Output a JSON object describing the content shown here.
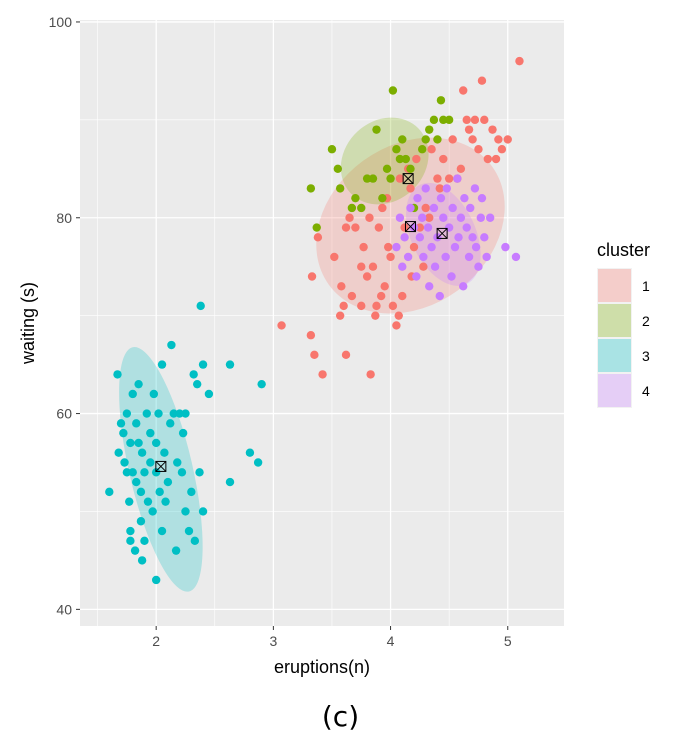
{
  "caption": "(c)",
  "chart_data": {
    "type": "scatter",
    "xlabel": "eruptions(n)",
    "ylabel": "waiting (s)",
    "xlim": [
      1.35,
      5.48
    ],
    "ylim": [
      38.3,
      100.2
    ],
    "x_ticks": [
      2,
      3,
      4,
      5
    ],
    "y_ticks": [
      40,
      60,
      80,
      100
    ],
    "grid": true,
    "background": "#ebebeb",
    "legend": {
      "title": "cluster",
      "position": "right",
      "entries": [
        "1",
        "2",
        "3",
        "4"
      ]
    },
    "series": [
      {
        "name": "1",
        "color": "#F8766D",
        "ellipse": {
          "cx": 4.17,
          "cy": 79.2,
          "rx_axis": 1.72,
          "ry_axis": 8.2,
          "angle_deg": -36,
          "fill_opacity": 0.25
        },
        "centroid": {
          "x": 4.17,
          "y": 79.1
        },
        "points": [
          [
            3.07,
            69
          ],
          [
            3.32,
            68
          ],
          [
            3.33,
            74
          ],
          [
            3.35,
            66
          ],
          [
            3.38,
            78
          ],
          [
            3.42,
            64
          ],
          [
            3.52,
            76
          ],
          [
            3.57,
            70
          ],
          [
            3.58,
            73
          ],
          [
            3.6,
            71
          ],
          [
            3.62,
            79
          ],
          [
            3.62,
            66
          ],
          [
            3.65,
            80
          ],
          [
            3.67,
            72
          ],
          [
            3.7,
            79
          ],
          [
            3.75,
            75
          ],
          [
            3.75,
            71
          ],
          [
            3.77,
            77
          ],
          [
            3.8,
            74
          ],
          [
            3.82,
            80
          ],
          [
            3.83,
            64
          ],
          [
            3.85,
            75
          ],
          [
            3.87,
            70
          ],
          [
            3.88,
            71
          ],
          [
            3.9,
            79
          ],
          [
            3.92,
            72
          ],
          [
            3.93,
            81
          ],
          [
            3.95,
            73
          ],
          [
            3.97,
            82
          ],
          [
            3.98,
            77
          ],
          [
            4.0,
            76
          ],
          [
            4.02,
            71
          ],
          [
            4.05,
            69
          ],
          [
            4.07,
            70
          ],
          [
            4.08,
            84
          ],
          [
            4.1,
            72
          ],
          [
            4.12,
            79
          ],
          [
            4.15,
            85
          ],
          [
            4.17,
            83
          ],
          [
            4.18,
            74
          ],
          [
            4.2,
            77
          ],
          [
            4.22,
            86
          ],
          [
            4.25,
            79
          ],
          [
            4.28,
            75
          ],
          [
            4.3,
            81
          ],
          [
            4.33,
            80
          ],
          [
            4.35,
            87
          ],
          [
            4.4,
            84
          ],
          [
            4.42,
            83
          ],
          [
            4.45,
            86
          ],
          [
            4.5,
            84
          ],
          [
            4.53,
            88
          ],
          [
            4.57,
            84
          ],
          [
            4.6,
            85
          ],
          [
            4.62,
            93
          ],
          [
            4.65,
            90
          ],
          [
            4.67,
            89
          ],
          [
            4.7,
            88
          ],
          [
            4.72,
            90
          ],
          [
            4.75,
            87
          ],
          [
            4.78,
            94
          ],
          [
            4.8,
            90
          ],
          [
            4.83,
            86
          ],
          [
            4.87,
            89
          ],
          [
            4.9,
            86
          ],
          [
            4.92,
            88
          ],
          [
            4.95,
            87
          ],
          [
            5.0,
            88
          ],
          [
            5.1,
            96
          ]
        ]
      },
      {
        "name": "2",
        "color": "#7CAE00",
        "ellipse": {
          "cx": 3.95,
          "cy": 85.8,
          "rx_axis": 0.8,
          "ry_axis": 4.1,
          "angle_deg": -43,
          "fill_opacity": 0.25
        },
        "centroid": {
          "x": 4.15,
          "y": 84.0
        },
        "points": [
          [
            3.32,
            83
          ],
          [
            3.37,
            79
          ],
          [
            3.5,
            87
          ],
          [
            3.55,
            85
          ],
          [
            3.57,
            83
          ],
          [
            3.67,
            81
          ],
          [
            3.7,
            82
          ],
          [
            3.75,
            81
          ],
          [
            3.8,
            84
          ],
          [
            3.85,
            84
          ],
          [
            3.88,
            89
          ],
          [
            3.93,
            82
          ],
          [
            3.97,
            85
          ],
          [
            4.0,
            84
          ],
          [
            4.02,
            93
          ],
          [
            4.05,
            87
          ],
          [
            4.08,
            86
          ],
          [
            4.1,
            88
          ],
          [
            4.13,
            86
          ],
          [
            4.17,
            85
          ],
          [
            4.2,
            81
          ],
          [
            4.27,
            87
          ],
          [
            4.3,
            88
          ],
          [
            4.33,
            89
          ],
          [
            4.37,
            90
          ],
          [
            4.4,
            88
          ],
          [
            4.43,
            92
          ],
          [
            4.45,
            90
          ],
          [
            4.5,
            90
          ]
        ]
      },
      {
        "name": "3",
        "color": "#00BFC4",
        "ellipse": {
          "cx": 2.04,
          "cy": 54.3,
          "rx_axis": 0.54,
          "ry_axis": 12.8,
          "angle_deg": -13,
          "fill_opacity": 0.25
        },
        "centroid": {
          "x": 2.04,
          "y": 54.6
        },
        "points": [
          [
            1.6,
            52
          ],
          [
            1.67,
            64
          ],
          [
            1.68,
            56
          ],
          [
            1.7,
            59
          ],
          [
            1.72,
            58
          ],
          [
            1.73,
            55
          ],
          [
            1.75,
            54
          ],
          [
            1.75,
            60
          ],
          [
            1.77,
            51
          ],
          [
            1.78,
            57
          ],
          [
            1.78,
            48
          ],
          [
            1.78,
            47
          ],
          [
            1.8,
            54
          ],
          [
            1.8,
            62
          ],
          [
            1.82,
            46
          ],
          [
            1.83,
            59
          ],
          [
            1.83,
            53
          ],
          [
            1.85,
            63
          ],
          [
            1.85,
            57
          ],
          [
            1.87,
            49
          ],
          [
            1.87,
            52
          ],
          [
            1.88,
            56
          ],
          [
            1.88,
            45
          ],
          [
            1.9,
            54
          ],
          [
            1.9,
            47
          ],
          [
            1.92,
            60
          ],
          [
            1.93,
            51
          ],
          [
            1.95,
            55
          ],
          [
            1.95,
            58
          ],
          [
            1.97,
            50
          ],
          [
            1.98,
            62
          ],
          [
            2.0,
            43
          ],
          [
            2.0,
            54
          ],
          [
            2.0,
            57
          ],
          [
            2.02,
            60
          ],
          [
            2.03,
            52
          ],
          [
            2.05,
            48
          ],
          [
            2.05,
            65
          ],
          [
            2.07,
            56
          ],
          [
            2.08,
            51
          ],
          [
            2.1,
            53
          ],
          [
            2.12,
            59
          ],
          [
            2.13,
            67
          ],
          [
            2.15,
            60
          ],
          [
            2.17,
            46
          ],
          [
            2.18,
            55
          ],
          [
            2.2,
            60
          ],
          [
            2.22,
            54
          ],
          [
            2.23,
            58
          ],
          [
            2.25,
            60
          ],
          [
            2.25,
            50
          ],
          [
            2.28,
            48
          ],
          [
            2.3,
            52
          ],
          [
            2.32,
            64
          ],
          [
            2.33,
            47
          ],
          [
            2.35,
            63
          ],
          [
            2.37,
            54
          ],
          [
            2.38,
            71
          ],
          [
            2.4,
            50
          ],
          [
            2.4,
            65
          ],
          [
            2.45,
            62
          ],
          [
            2.63,
            53
          ],
          [
            2.63,
            65
          ],
          [
            2.8,
            56
          ],
          [
            2.87,
            55
          ],
          [
            2.9,
            63
          ]
        ]
      },
      {
        "name": "4",
        "color": "#C77CFF",
        "ellipse": {
          "cx": 4.45,
          "cy": 78.3,
          "rx_axis": 0.55,
          "ry_axis": 5.6,
          "angle_deg": -25,
          "fill_opacity": 0.25
        },
        "centroid": {
          "x": 4.44,
          "y": 78.4
        },
        "points": [
          [
            4.05,
            77
          ],
          [
            4.08,
            80
          ],
          [
            4.1,
            75
          ],
          [
            4.12,
            78
          ],
          [
            4.15,
            76
          ],
          [
            4.17,
            81
          ],
          [
            4.2,
            79
          ],
          [
            4.22,
            74
          ],
          [
            4.23,
            82
          ],
          [
            4.25,
            78
          ],
          [
            4.27,
            80
          ],
          [
            4.28,
            76
          ],
          [
            4.3,
            83
          ],
          [
            4.32,
            79
          ],
          [
            4.33,
            73
          ],
          [
            4.35,
            77
          ],
          [
            4.37,
            81
          ],
          [
            4.38,
            75
          ],
          [
            4.4,
            78
          ],
          [
            4.42,
            72
          ],
          [
            4.43,
            82
          ],
          [
            4.45,
            80
          ],
          [
            4.47,
            76
          ],
          [
            4.48,
            83
          ],
          [
            4.5,
            79
          ],
          [
            4.52,
            74
          ],
          [
            4.53,
            81
          ],
          [
            4.55,
            77
          ],
          [
            4.57,
            84
          ],
          [
            4.58,
            78
          ],
          [
            4.6,
            80
          ],
          [
            4.62,
            73
          ],
          [
            4.63,
            82
          ],
          [
            4.65,
            79
          ],
          [
            4.67,
            76
          ],
          [
            4.68,
            81
          ],
          [
            4.7,
            78
          ],
          [
            4.72,
            83
          ],
          [
            4.73,
            77
          ],
          [
            4.75,
            75
          ],
          [
            4.77,
            80
          ],
          [
            4.78,
            82
          ],
          [
            4.8,
            78
          ],
          [
            4.82,
            76
          ],
          [
            4.85,
            80
          ],
          [
            4.98,
            77
          ],
          [
            5.07,
            76
          ]
        ]
      }
    ]
  }
}
